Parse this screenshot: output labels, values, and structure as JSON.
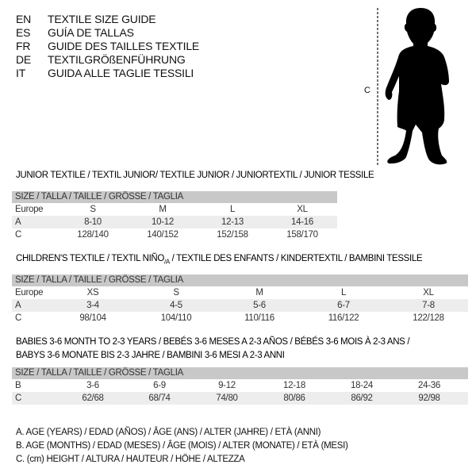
{
  "languages": [
    {
      "code": "EN",
      "text": "TEXTILE SIZE GUIDE"
    },
    {
      "code": "ES",
      "text": "GUÍA DE TALLAS"
    },
    {
      "code": "FR",
      "text": "GUIDE DES TAILLES TEXTILE"
    },
    {
      "code": "DE",
      "text": "TEXTILGRÖßENFÜHRUNG"
    },
    {
      "code": "IT",
      "text": "GUIDA ALLE TAGLIE TESSILI"
    }
  ],
  "figure": {
    "measure_label": "C",
    "icon": "child-silhouette"
  },
  "junior": {
    "title": "JUNIOR TEXTILE / TEXTIL JUNIOR/ TEXTILE JUNIOR / JUNIORTEXTIL / JUNIOR TESSILE",
    "header": "SIZE / TALLA / TAILLE / GRÖSSE / TAGLIA",
    "rows": [
      {
        "label": "Europe",
        "cells": [
          "S",
          "M",
          "L",
          "XL"
        ]
      },
      {
        "label": "A",
        "cells": [
          "8-10",
          "10-12",
          "12-13",
          "14-16"
        ]
      },
      {
        "label": "C",
        "cells": [
          "128/140",
          "140/152",
          "152/158",
          "158/170"
        ]
      }
    ]
  },
  "children": {
    "title": "CHILDREN'S TEXTILE / TEXTIL NIÑO",
    "title_sub": "/A",
    "title_rest": " / TEXTILE DES ENFANTS / KINDERTEXTIL / BAMBINI TESSILE",
    "header": "SIZE / TALLA / TAILLE / GRÖSSE / TAGLIA",
    "rows": [
      {
        "label": "Europe",
        "cells": [
          "XS",
          "S",
          "M",
          "L",
          "XL"
        ]
      },
      {
        "label": "A",
        "cells": [
          "3-4",
          "4-5",
          "5-6",
          "6-7",
          "7-8"
        ]
      },
      {
        "label": "C",
        "cells": [
          "98/104",
          "104/110",
          "110/116",
          "116/122",
          "122/128"
        ]
      }
    ]
  },
  "babies": {
    "title_line1": "BABIES 3-6 MONTH TO 2-3 YEARS / BEBÉS 3-6 MESES A 2-3 AÑOS / BÉBÉS 3-6 MOIS À 2-3 ANS /",
    "title_line2": "BABYS 3-6 MONATE BIS 2-3 JAHRE / BAMBINI 3-6 MESI A 2-3 ANNI",
    "header": "SIZE / TALLA / TAILLE / GRÖSSE / TAGLIA",
    "rows": [
      {
        "label": "B",
        "cells": [
          "3-6",
          "6-9",
          "9-12",
          "12-18",
          "18-24",
          "24-36"
        ]
      },
      {
        "label": "C",
        "cells": [
          "62/68",
          "68/74",
          "74/80",
          "80/86",
          "86/92",
          "92/98"
        ]
      }
    ]
  },
  "legend": [
    "A. AGE (YEARS) / EDAD (AÑOS) / ÂGE (ANS) / ALTER (JAHRE) / ETÀ (ANNI)",
    "B. AGE (MONTHS) / EDAD (MESES) / ÂGE (MOIS) / ALTER (MONATE) / ETÀ (MESI)",
    "C. (cm) HEIGHT / ALTURA / HAUTEUR / HÖHE / ALTEZZA"
  ]
}
